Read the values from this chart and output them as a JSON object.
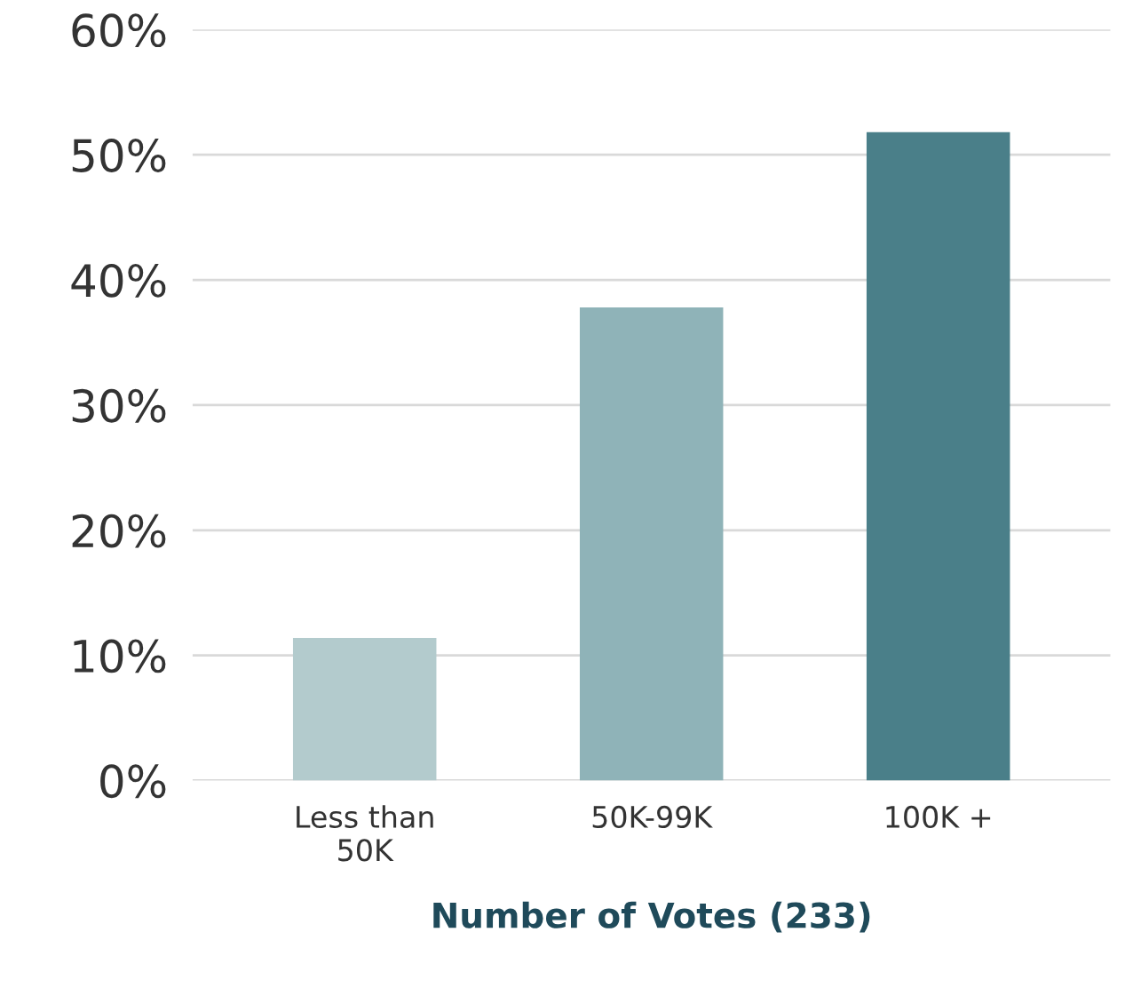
{
  "chart_data": {
    "type": "bar",
    "xlabel": "Number of Votes (233)",
    "categories": [
      "Less than\n50K",
      "50K-99K",
      "100K +"
    ],
    "values": [
      11.4,
      37.8,
      51.8
    ],
    "colors": [
      "#b3cbcd",
      "#8fb3b8",
      "#4a7f89"
    ],
    "ylim": [
      0,
      60
    ],
    "yticks": [
      {
        "value": 0,
        "label": "0%"
      },
      {
        "value": 10,
        "label": "10%"
      },
      {
        "value": 20,
        "label": "20%"
      },
      {
        "value": 30,
        "label": "30%"
      },
      {
        "value": 40,
        "label": "40%"
      },
      {
        "value": 50,
        "label": "50%"
      },
      {
        "value": 60,
        "label": "60%"
      }
    ],
    "grid": "y"
  }
}
